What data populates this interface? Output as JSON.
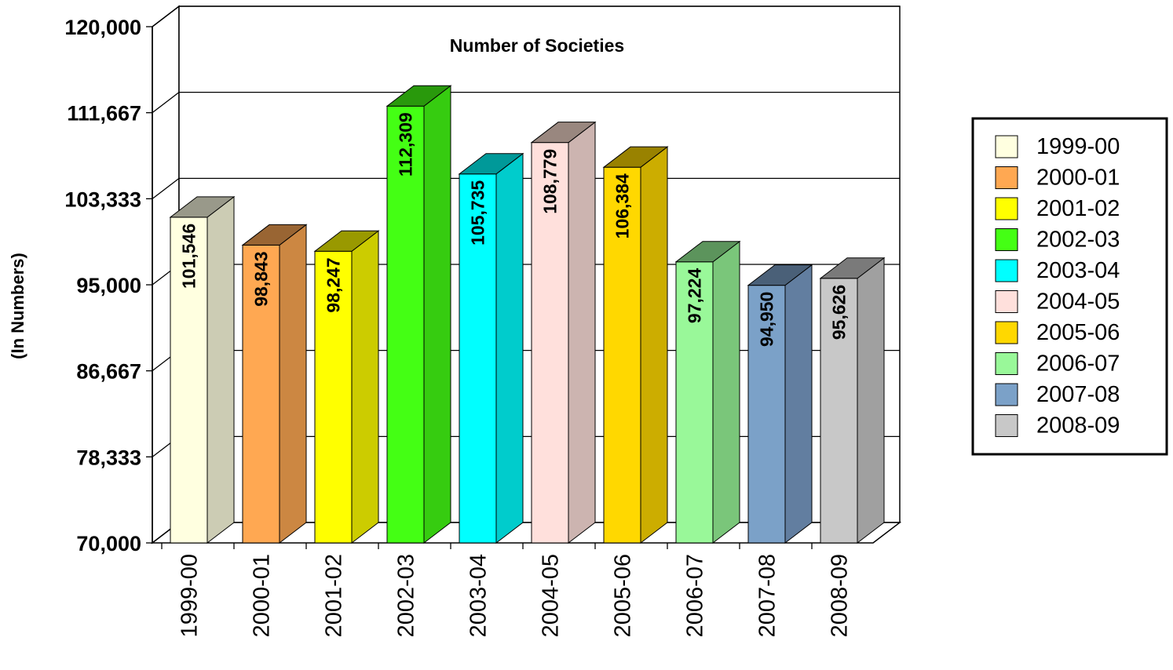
{
  "chart_data": {
    "type": "bar",
    "title": "Number of Societies",
    "xlabel": "",
    "ylabel": "(In Numbers)",
    "ylim": [
      70000,
      120000
    ],
    "y_ticks": [
      "70,000",
      "78,333",
      "86,667",
      "95,000",
      "103,333",
      "111,667",
      "120,000"
    ],
    "y_tick_values": [
      70000,
      78333,
      86667,
      95000,
      103333,
      111667,
      120000
    ],
    "categories": [
      "1999-00",
      "2000-01",
      "2001-02",
      "2002-03",
      "2003-04",
      "2004-05",
      "2005-06",
      "2006-07",
      "2007-08",
      "2008-09"
    ],
    "values": [
      101546,
      98843,
      98247,
      112309,
      105735,
      108779,
      106384,
      97224,
      94950,
      95626
    ],
    "value_labels": [
      "101,546",
      "98,843",
      "98,247",
      "112,309",
      "105,735",
      "108,779",
      "106,384",
      "97,224",
      "94,950",
      "95,626"
    ],
    "colors": [
      "#FFFFE0",
      "#FFA852",
      "#FFFF00",
      "#44FF14",
      "#00FFFF",
      "#FFE0DC",
      "#FFD800",
      "#99F899",
      "#7BA1C8",
      "#C8C8C8"
    ],
    "side_colors": [
      "#CCCCB4",
      "#CC8742",
      "#CCCC00",
      "#36CC10",
      "#00CCCC",
      "#CCB4B0",
      "#CCAD00",
      "#7AC67A",
      "#627EA0",
      "#A0A0A0"
    ],
    "top_colors": [
      "#99998A",
      "#996533",
      "#999900",
      "#29990C",
      "#009999",
      "#99877F",
      "#998200",
      "#5C945C",
      "#4A6078",
      "#7A7A7A"
    ],
    "legend": [
      "1999-00",
      "2000-01",
      "2001-02",
      "2002-03",
      "2003-04",
      "2004-05",
      "2005-06",
      "2006-07",
      "2007-08",
      "2008-09"
    ],
    "legend_position": "right",
    "grid": true
  }
}
